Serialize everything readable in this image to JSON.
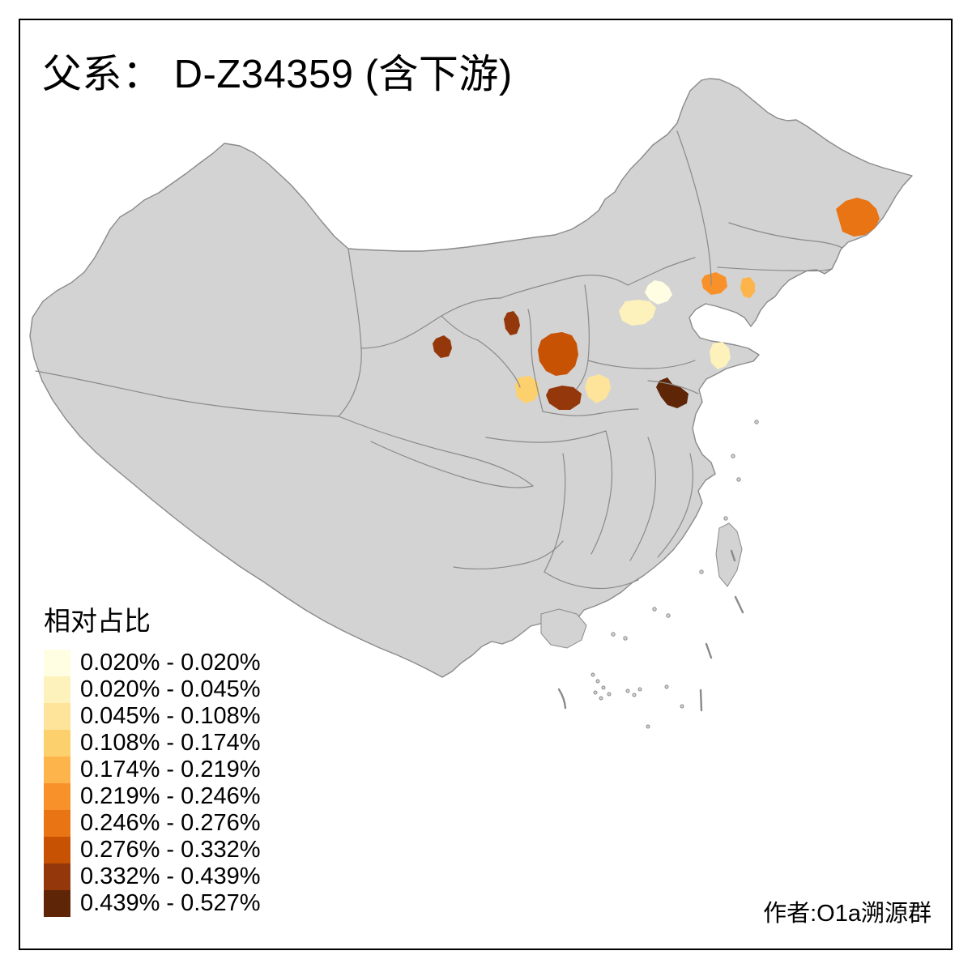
{
  "title": "父系： D-Z34359 (含下游)",
  "attribution": "作者:O1a溯源群",
  "legend": {
    "title": "相对占比",
    "items": [
      {
        "label": "0.020% - 0.020%",
        "color": "#FFFEE3"
      },
      {
        "label": "0.020% - 0.045%",
        "color": "#FDF2BB"
      },
      {
        "label": "0.045% - 0.108%",
        "color": "#FDE49A"
      },
      {
        "label": "0.108% - 0.174%",
        "color": "#FDD06E"
      },
      {
        "label": "0.174% - 0.219%",
        "color": "#FDB44A"
      },
      {
        "label": "0.219% - 0.246%",
        "color": "#F9912A"
      },
      {
        "label": "0.246% - 0.276%",
        "color": "#E87414"
      },
      {
        "label": "0.276% - 0.332%",
        "color": "#C85203"
      },
      {
        "label": "0.332% - 0.439%",
        "color": "#94370A"
      },
      {
        "label": "0.439% - 0.527%",
        "color": "#5F2507"
      }
    ]
  },
  "map": {
    "land_color": "#d3d3d3",
    "border_color": "#8a8a8a",
    "background_color": "#ffffff",
    "frame_color": "#000000",
    "regions": [
      {
        "id": "beijing-area",
        "bucket": 0
      },
      {
        "id": "hebei-central",
        "bucket": 1
      },
      {
        "id": "shandong-east",
        "bucket": 1
      },
      {
        "id": "henan-west",
        "bucket": 2
      },
      {
        "id": "gansu-east",
        "bucket": 3
      },
      {
        "id": "liaoning-east",
        "bucket": 4
      },
      {
        "id": "liaoning-west",
        "bucket": 5
      },
      {
        "id": "heilongjiang-east",
        "bucket": 6
      },
      {
        "id": "shanxi-central",
        "bucket": 7
      },
      {
        "id": "shaanxi-north",
        "bucket": 8
      },
      {
        "id": "qinghai-east",
        "bucket": 8
      },
      {
        "id": "shanxi-south",
        "bucket": 8
      },
      {
        "id": "jiangsu-north",
        "bucket": 9
      }
    ]
  },
  "chart_data": {
    "type": "choropleth",
    "title": "父系： D-Z34359 (含下游)",
    "legend_title": "相对占比",
    "classes": [
      "0.020% - 0.020%",
      "0.020% - 0.045%",
      "0.045% - 0.108%",
      "0.108% - 0.174%",
      "0.174% - 0.219%",
      "0.219% - 0.246%",
      "0.246% - 0.276%",
      "0.276% - 0.332%",
      "0.332% - 0.439%",
      "0.439% - 0.527%"
    ],
    "colored_region_count": 13,
    "value_min": "0.020%",
    "value_max": "0.527%"
  }
}
